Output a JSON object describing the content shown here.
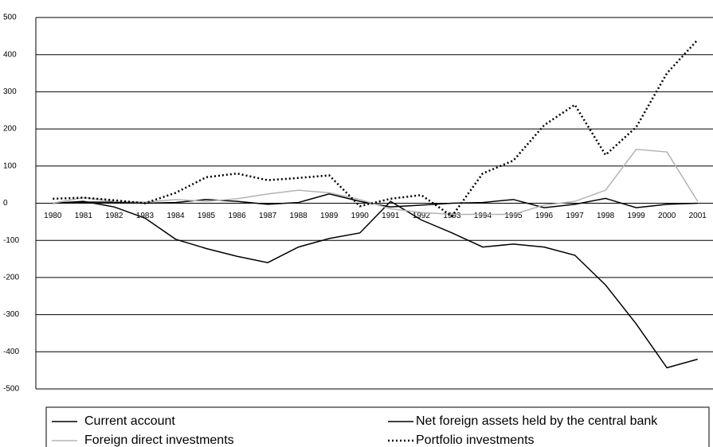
{
  "chart_data": {
    "type": "line",
    "categories": [
      "1980",
      "1981",
      "1982",
      "1983",
      "1984",
      "1985",
      "1986",
      "1987",
      "1988",
      "1989",
      "1990",
      "1991",
      "1992",
      "1993",
      "1994",
      "1995",
      "1996",
      "1997",
      "1998",
      "1999",
      "2000",
      "2001"
    ],
    "series": [
      {
        "name": "Current account",
        "color": "#000000",
        "line_style": "solid",
        "values": [
          0,
          5,
          -10,
          -40,
          -97,
          -122,
          -143,
          -160,
          -118,
          -95,
          -80,
          5,
          -45,
          -80,
          -118,
          -110,
          -118,
          -140,
          -220,
          -325,
          -443,
          -420
        ]
      },
      {
        "name": "Net foreign assets held by the central bank",
        "color": "#000000",
        "line_style": "solid",
        "values": [
          0,
          3,
          3,
          0,
          2,
          10,
          5,
          -3,
          2,
          25,
          5,
          -10,
          -5,
          0,
          2,
          10,
          -12,
          -3,
          13,
          -12,
          -3,
          0
        ]
      },
      {
        "name": "Foreign direct investments",
        "color": "#b3b3b3",
        "line_style": "solid",
        "values": [
          0,
          15,
          5,
          3,
          10,
          5,
          12,
          25,
          35,
          28,
          10,
          -15,
          -25,
          -30,
          -30,
          -30,
          -5,
          5,
          35,
          145,
          138,
          5
        ]
      },
      {
        "name": "Portfolio investments",
        "color": "#000000",
        "line_style": "dotted",
        "values": [
          12,
          15,
          8,
          0,
          28,
          70,
          80,
          62,
          68,
          75,
          -8,
          12,
          22,
          -35,
          80,
          115,
          210,
          265,
          130,
          205,
          350,
          440
        ]
      }
    ],
    "ylim": [
      -500,
      500
    ],
    "yticks": [
      -500,
      -400,
      -300,
      -200,
      -100,
      0,
      100,
      200,
      300,
      400,
      500
    ],
    "grid": true
  }
}
